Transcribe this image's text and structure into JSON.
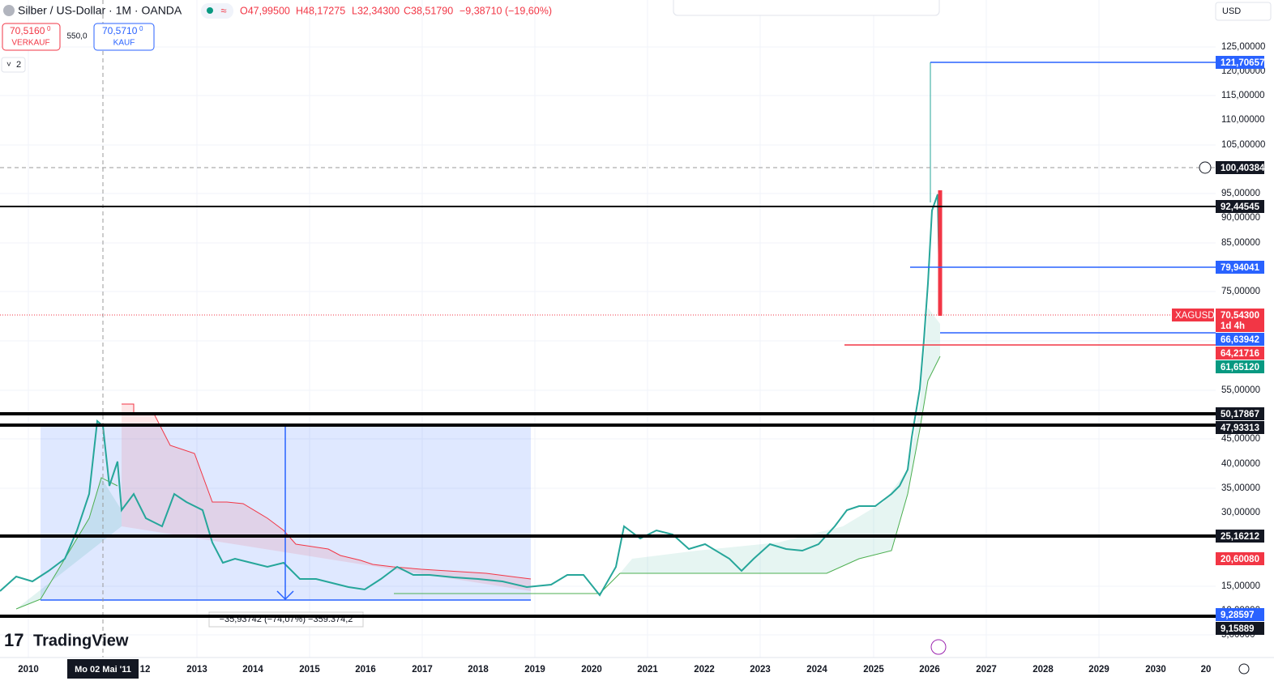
{
  "header": {
    "symbol": "Silber / US-Dollar · 1M · OANDA",
    "open": "O47,99500",
    "high": "H48,17275",
    "low": "L32,34300",
    "close": "C38,51790",
    "change": "−9,38710 (−19,60%)"
  },
  "trade": {
    "sell_price": "70,5160",
    "sell_sup": "0",
    "sell_label": "VERKAUF",
    "spread": "550,0",
    "buy_price": "70,5710",
    "buy_sup": "0",
    "buy_label": "KAUF"
  },
  "indicators_count": "2",
  "currency": "USD",
  "price_axis": [
    "125,00000",
    "120,00000",
    "115,00000",
    "110,00000",
    "105,00000",
    "95,00000",
    "90,00000",
    "85,00000",
    "75,00000",
    "55,00000",
    "45,00000",
    "40,00000",
    "35,00000",
    "30,00000",
    "15,00000",
    "10,00000",
    "5,00000"
  ],
  "price_tags": [
    "121,70657",
    "100,40384",
    "92,44545",
    "79,94041",
    "70,54300",
    "1d 4h",
    "66,63942",
    "64,21716",
    "61,65120",
    "50,17867",
    "47,93313",
    "25,16212",
    "20,60080",
    "9,28597",
    "9,15889"
  ],
  "symbol_tag": "XAGUSD",
  "time_axis": [
    "2010",
    "Mo 02 Mai '11",
    "12",
    "2013",
    "2014",
    "2015",
    "2016",
    "2017",
    "2018",
    "2019",
    "2020",
    "2021",
    "2022",
    "2023",
    "2024",
    "2025",
    "2026",
    "2027",
    "2028",
    "2029",
    "2030",
    "20"
  ],
  "measure": "−35,93742 (−74,07%) −359.374,2",
  "brand": "TradingView"
}
